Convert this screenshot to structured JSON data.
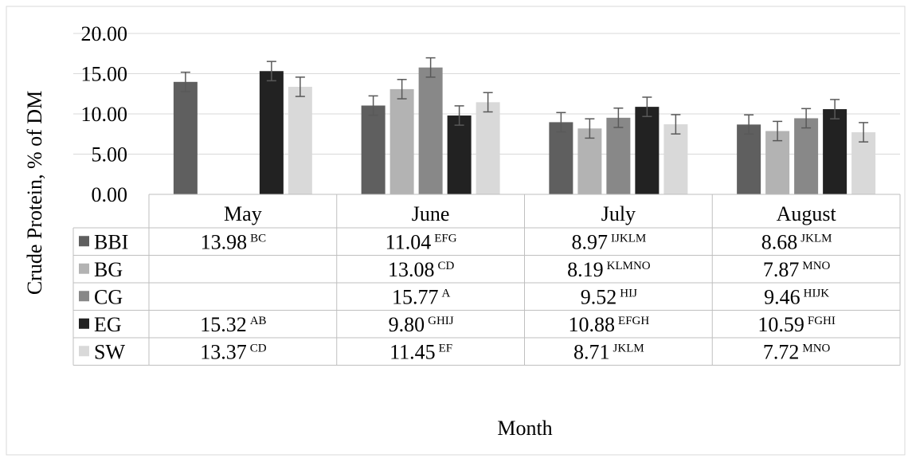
{
  "chart_data": {
    "type": "bar",
    "ylabel": "Crude Protein,  % of  DM",
    "xlabel": "Month",
    "ylim": [
      0,
      20
    ],
    "yticks": [
      "0.00",
      "5.00",
      "10.00",
      "15.00",
      "20.00"
    ],
    "grid": true,
    "legend_position": "data-table",
    "categories": [
      "May",
      "June",
      "July",
      "August"
    ],
    "series": [
      {
        "name": "BBI",
        "color": "#5f5f5f",
        "values": [
          13.98,
          11.04,
          8.97,
          8.68
        ],
        "errors": [
          1.2,
          1.2,
          1.2,
          1.2
        ],
        "labels": [
          "13.98",
          "11.04",
          "8.97",
          "8.68"
        ],
        "letters": [
          "BC",
          "EFG",
          "IJKLM",
          "JKLM"
        ]
      },
      {
        "name": "BG",
        "color": "#b3b3b3",
        "values": [
          null,
          13.08,
          8.19,
          7.87
        ],
        "errors": [
          null,
          1.2,
          1.2,
          1.2
        ],
        "labels": [
          "",
          "13.08",
          "8.19",
          "7.87"
        ],
        "letters": [
          "",
          "CD",
          "KLMNO",
          "MNO"
        ]
      },
      {
        "name": "CG",
        "color": "#888888",
        "values": [
          null,
          15.77,
          9.52,
          9.46
        ],
        "errors": [
          null,
          1.2,
          1.2,
          1.2
        ],
        "labels": [
          "",
          "15.77",
          "9.52",
          "9.46"
        ],
        "letters": [
          "",
          "A",
          "HIJ",
          "HIJK"
        ]
      },
      {
        "name": "EG",
        "color": "#222222",
        "values": [
          15.32,
          9.8,
          10.88,
          10.59
        ],
        "errors": [
          1.2,
          1.2,
          1.2,
          1.2
        ],
        "labels": [
          "15.32",
          "9.80",
          "10.88",
          "10.59"
        ],
        "letters": [
          "AB",
          "GHIJ",
          "EFGH",
          "FGHI"
        ]
      },
      {
        "name": "SW",
        "color": "#d9d9d9",
        "values": [
          13.37,
          11.45,
          8.71,
          7.72
        ],
        "errors": [
          1.2,
          1.2,
          1.2,
          1.2
        ],
        "labels": [
          "13.37",
          "11.45",
          "8.71",
          "7.72"
        ],
        "letters": [
          "CD",
          "EF",
          "JKLM",
          "MNO"
        ]
      }
    ]
  }
}
